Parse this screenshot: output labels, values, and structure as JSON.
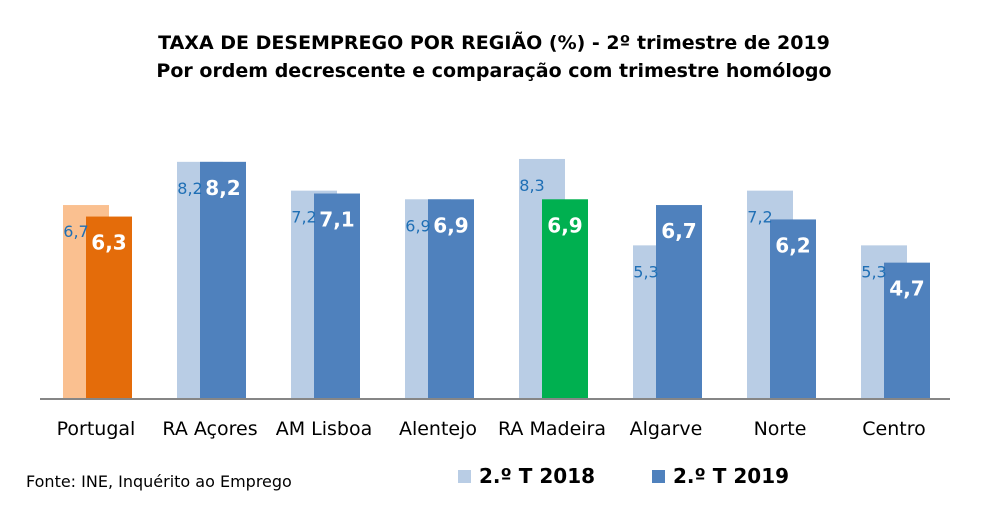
{
  "chart_data": {
    "type": "bar",
    "title": "TAXA DE DESEMPREGO POR REGIÃO (%) - 2º trimestre de 2019",
    "subtitle": "Por ordem decrescente e comparação  com trimestre homólogo",
    "categories": [
      "Portugal",
      "RA Açores",
      "AM Lisboa",
      "Alentejo",
      "RA Madeira",
      "Algarve",
      "Norte",
      "Centro"
    ],
    "series": [
      {
        "name": "2.º T 2018",
        "values": [
          6.7,
          8.2,
          7.2,
          6.9,
          8.3,
          5.3,
          7.2,
          5.3
        ],
        "labels": [
          "6,7",
          "8,2",
          "7,2",
          "6,9",
          "8,3",
          "5,3",
          "7,2",
          "5,3"
        ],
        "color": "#B9CDE5",
        "highlight_colors": {
          "0": "#FAC090"
        }
      },
      {
        "name": "2.º T 2019",
        "values": [
          6.3,
          8.2,
          7.1,
          6.9,
          6.9,
          6.7,
          6.2,
          4.7
        ],
        "labels": [
          "6,3",
          "8,2",
          "7,1",
          "6,9",
          "6,9",
          "6,7",
          "6,2",
          "4,7"
        ],
        "color": "#4F81BD",
        "highlight_colors": {
          "0": "#E46C0A",
          "4": "#00B050"
        }
      }
    ],
    "label_color_2018": "#1F6FB5",
    "ylim": [
      0,
      10
    ],
    "grid": false,
    "legend": "bottom",
    "source": "Fonte: INE, Inquérito ao Emprego"
  }
}
